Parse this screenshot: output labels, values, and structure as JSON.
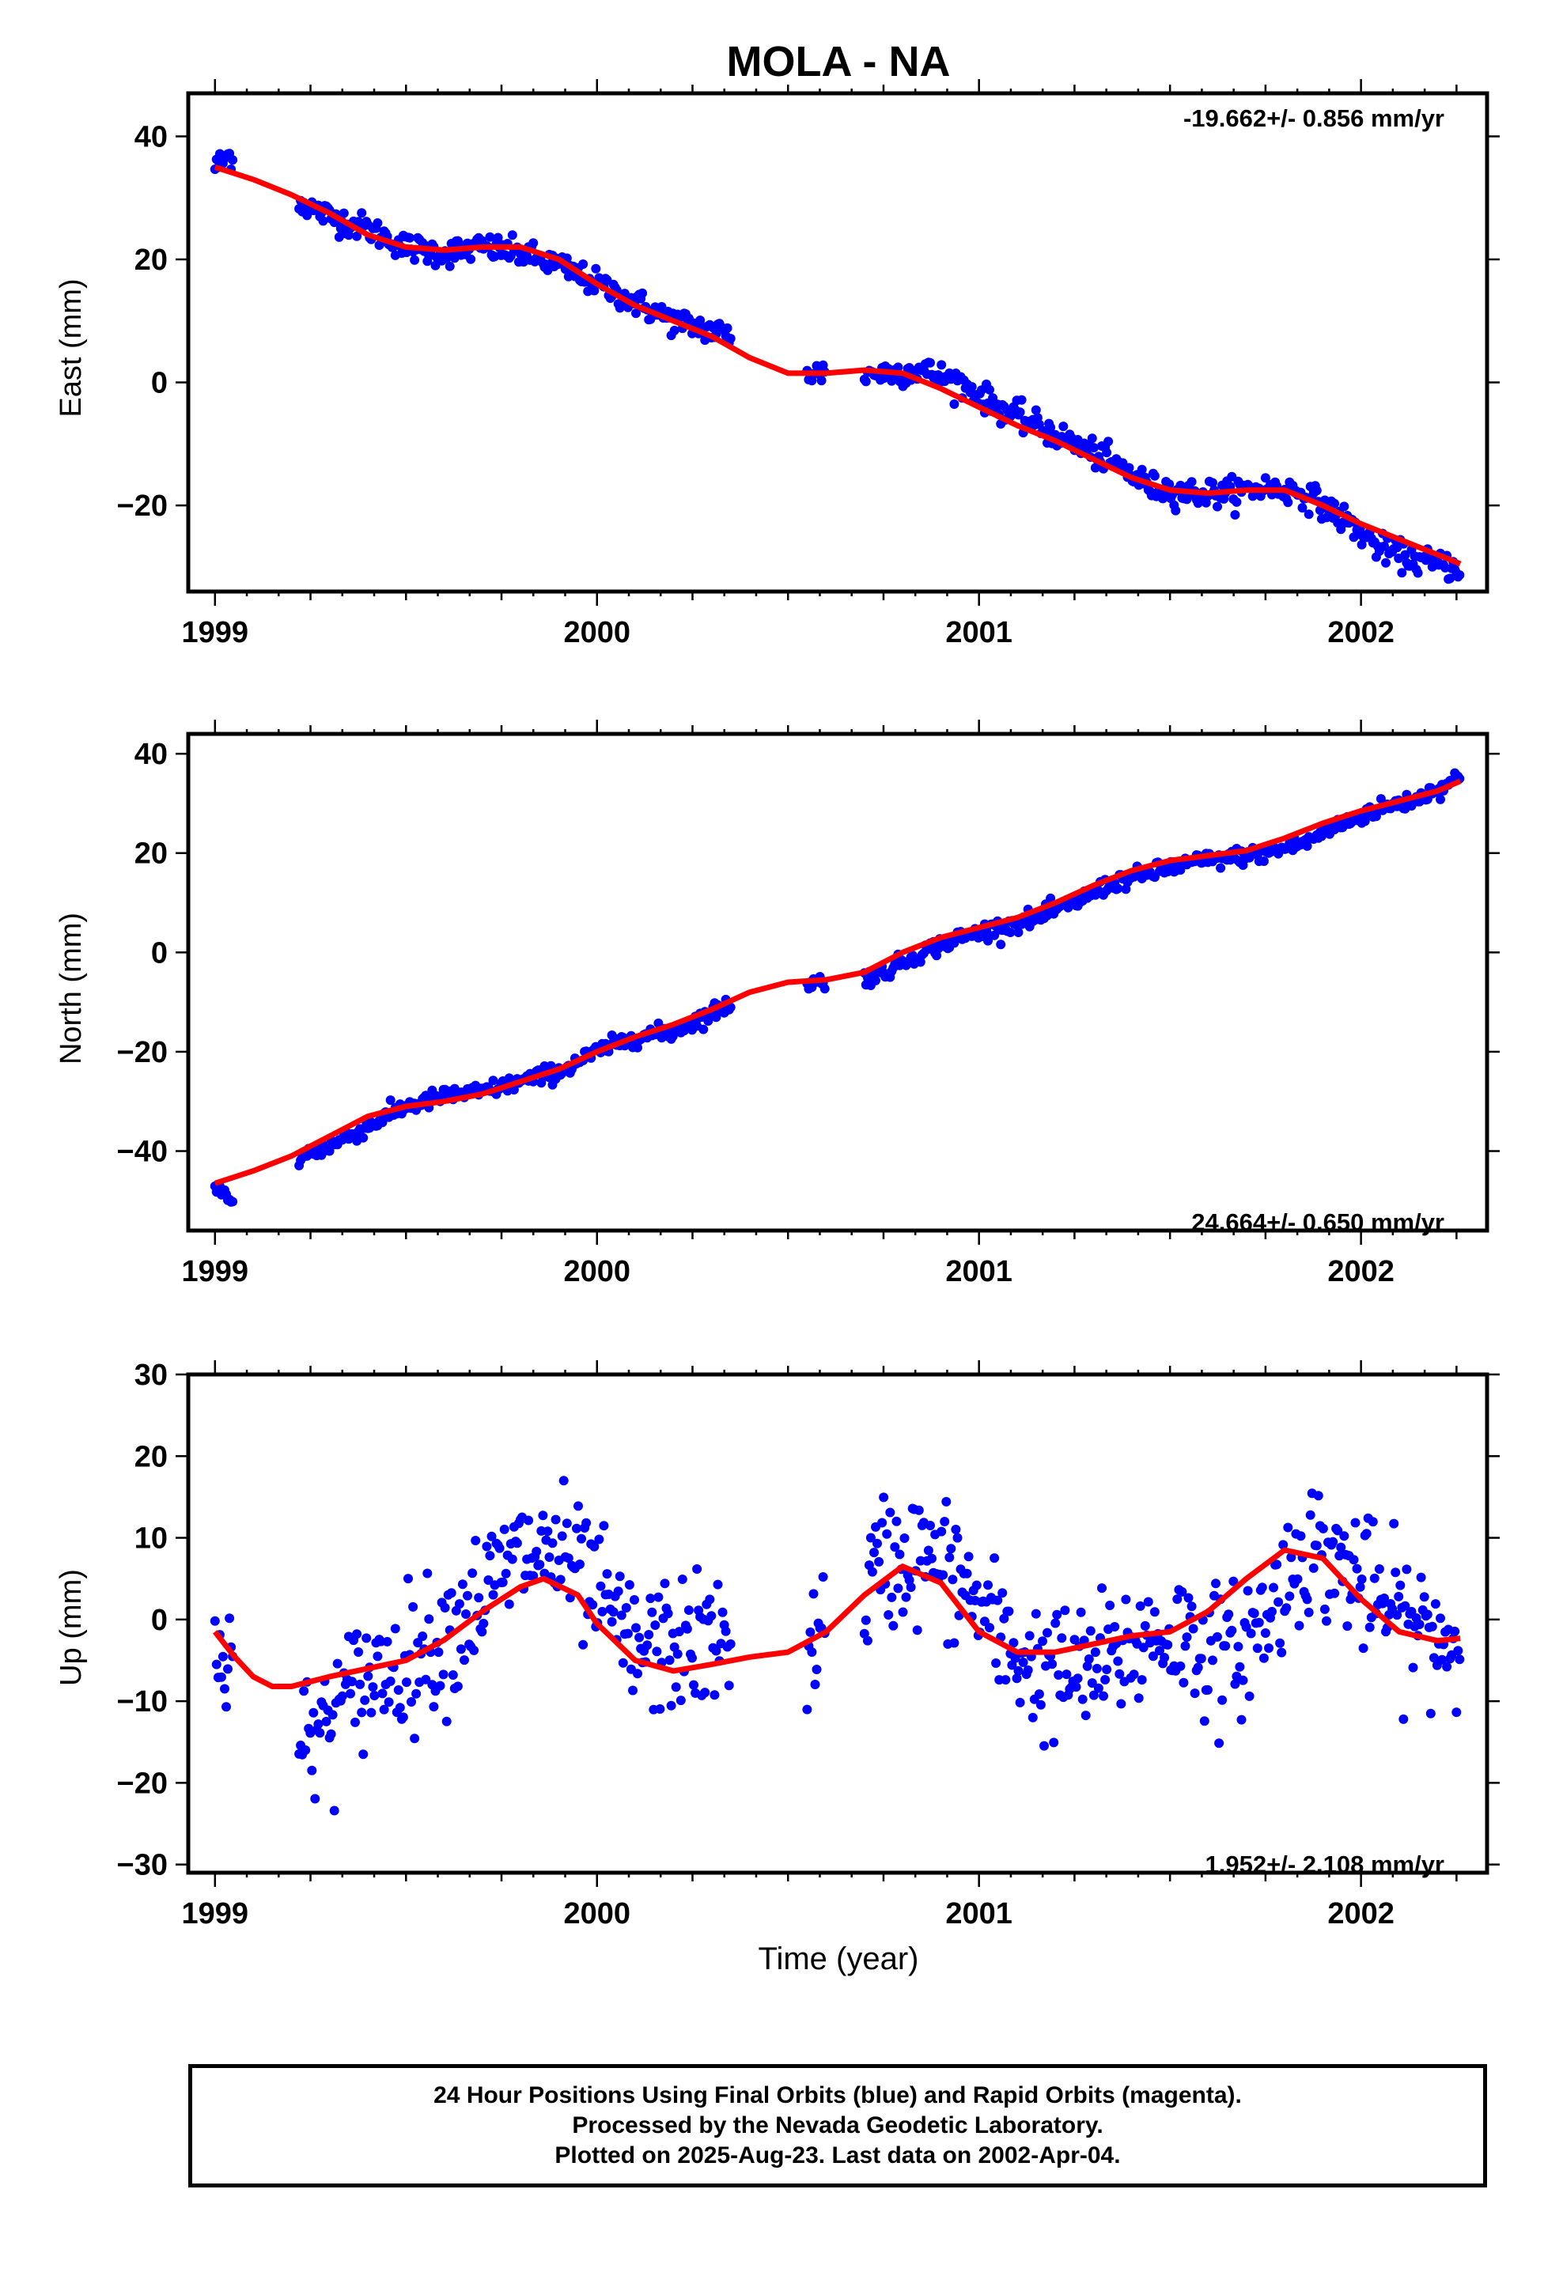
{
  "title": "MOLA - NA",
  "colors": {
    "final_orbits": "#0000ff",
    "rapid_orbits": "#ff00ff",
    "model_fit": "#ff0000"
  },
  "chart_data": [
    {
      "type": "scatter",
      "name": "east",
      "ylabel": "East (mm)",
      "xlabel": "",
      "rate_text": "-19.662+/- 0.856 mm/yr",
      "xlim": [
        1998.93,
        2002.33
      ],
      "ylim": [
        -34,
        47
      ],
      "x_ticks": [
        1999,
        2000,
        2001,
        2002
      ],
      "x_tick_labels": [
        "1999",
        "2000",
        "2001",
        "2002"
      ],
      "y_ticks": [
        40,
        20,
        0,
        -20
      ],
      "y_tick_labels": [
        "40",
        "20",
        "0",
        "−20"
      ],
      "series": [
        {
          "kind": "points",
          "color": "#0000ff",
          "noise": 2.0,
          "x": [
            1999.0,
            1999.02,
            1999.04,
            1999.23,
            1999.3,
            1999.4,
            1999.5,
            1999.6,
            1999.7,
            1999.8,
            1999.9,
            2000.0,
            2000.1,
            2000.2,
            2000.33,
            2000.56,
            2000.65,
            2000.75,
            2000.85,
            2000.95,
            2001.05,
            2001.15,
            2001.25,
            2001.35,
            2001.45,
            2001.55,
            2001.65,
            2001.75,
            2001.85,
            2001.95,
            2002.05,
            2002.15,
            2002.25
          ],
          "y": [
            35,
            36,
            37,
            29,
            27,
            25,
            22,
            21,
            22,
            21,
            19,
            16,
            13,
            10,
            8,
            1.5,
            1.5,
            1.5,
            2,
            0,
            -4,
            -7,
            -10,
            -13,
            -17,
            -18,
            -18,
            -17,
            -18,
            -22,
            -27,
            -29,
            -30
          ]
        },
        {
          "kind": "line",
          "color": "#ff0000",
          "x": [
            1999.0,
            1999.1,
            1999.2,
            1999.3,
            1999.4,
            1999.5,
            1999.6,
            1999.7,
            1999.8,
            1999.9,
            2000.0,
            2000.1,
            2000.2,
            2000.3,
            2000.4,
            2000.5,
            2000.6,
            2000.7,
            2000.8,
            2000.9,
            2001.0,
            2001.1,
            2001.2,
            2001.3,
            2001.4,
            2001.5,
            2001.6,
            2001.7,
            2001.8,
            2001.9,
            2002.0,
            2002.1,
            2002.2,
            2002.26
          ],
          "y": [
            35,
            33,
            30.5,
            27.5,
            24,
            22,
            21.5,
            22,
            22,
            20,
            16,
            12.5,
            10,
            7.5,
            4,
            1.5,
            1.5,
            2,
            1.5,
            -1,
            -4,
            -7,
            -9.5,
            -12.5,
            -15.5,
            -17.5,
            -18,
            -17.5,
            -17.5,
            -20,
            -23,
            -25.5,
            -28,
            -29.5
          ]
        }
      ]
    },
    {
      "type": "scatter",
      "name": "north",
      "ylabel": "North (mm)",
      "xlabel": "",
      "rate_text": "24.664+/- 0.650 mm/yr",
      "xlim": [
        1998.93,
        2002.33
      ],
      "ylim": [
        -56,
        44
      ],
      "x_ticks": [
        1999,
        2000,
        2001,
        2002
      ],
      "x_tick_labels": [
        "1999",
        "2000",
        "2001",
        "2002"
      ],
      "y_ticks": [
        40,
        20,
        0,
        -20,
        -40
      ],
      "y_tick_labels": [
        "40",
        "20",
        "0",
        "−20",
        "−40"
      ],
      "series": [
        {
          "kind": "points",
          "color": "#0000ff",
          "noise": 1.6,
          "x": [
            1999.0,
            1999.02,
            1999.04,
            1999.23,
            1999.3,
            1999.4,
            1999.5,
            1999.6,
            1999.7,
            1999.8,
            1999.9,
            2000.0,
            2000.1,
            2000.2,
            2000.33,
            2000.56,
            2000.65,
            2000.75,
            2000.85,
            2000.95,
            2001.05,
            2001.15,
            2001.25,
            2001.35,
            2001.45,
            2001.55,
            2001.65,
            2001.75,
            2001.85,
            2001.95,
            2002.05,
            2002.15,
            2002.25
          ],
          "y": [
            -48,
            -48,
            -51,
            -41,
            -39,
            -35,
            -31,
            -29,
            -28,
            -26,
            -24,
            -20,
            -17,
            -16,
            -11,
            -6,
            -6,
            -4,
            0,
            3,
            5,
            7,
            10,
            14,
            16,
            18,
            19,
            20,
            22,
            26,
            29,
            31,
            35
          ]
        },
        {
          "kind": "line",
          "color": "#ff0000",
          "x": [
            1999.0,
            1999.1,
            1999.2,
            1999.3,
            1999.4,
            1999.5,
            1999.6,
            1999.7,
            1999.8,
            1999.9,
            2000.0,
            2000.1,
            2000.2,
            2000.3,
            2000.4,
            2000.5,
            2000.6,
            2000.7,
            2000.8,
            2000.9,
            2001.0,
            2001.1,
            2001.2,
            2001.3,
            2001.4,
            2001.5,
            2001.6,
            2001.7,
            2001.8,
            2001.9,
            2002.0,
            2002.1,
            2002.2,
            2002.26
          ],
          "y": [
            -46.5,
            -44,
            -41,
            -37,
            -33,
            -31,
            -30,
            -28.5,
            -26,
            -23.5,
            -20,
            -17,
            -14.5,
            -11.5,
            -8,
            -6,
            -5.5,
            -4,
            0,
            3,
            5,
            7,
            10,
            13.5,
            16.5,
            18.5,
            19.5,
            20.5,
            23,
            26,
            28.5,
            30.5,
            32.5,
            34.5
          ]
        }
      ]
    },
    {
      "type": "scatter",
      "name": "up",
      "ylabel": "Up (mm)",
      "xlabel": "Time (year)",
      "rate_text": "1.952+/- 2.108 mm/yr",
      "xlim": [
        1998.93,
        2002.33
      ],
      "ylim": [
        -31,
        30
      ],
      "x_ticks": [
        1999,
        2000,
        2001,
        2002
      ],
      "x_tick_labels": [
        "1999",
        "2000",
        "2001",
        "2002"
      ],
      "y_ticks": [
        30,
        20,
        10,
        0,
        -10,
        -20,
        -30
      ],
      "y_tick_labels": [
        "30",
        "20",
        "10",
        "0",
        "−10",
        "−20",
        "−30"
      ],
      "series": [
        {
          "kind": "points",
          "color": "#0000ff",
          "noise": 7.5,
          "x": [
            1999.0,
            1999.02,
            1999.04,
            1999.23,
            1999.3,
            1999.4,
            1999.5,
            1999.6,
            1999.7,
            1999.8,
            1999.9,
            2000.0,
            2000.1,
            2000.2,
            2000.33,
            2000.56,
            2000.65,
            2000.75,
            2000.85,
            2000.95,
            2001.05,
            2001.15,
            2001.25,
            2001.35,
            2001.45,
            2001.55,
            2001.65,
            2001.75,
            2001.85,
            2001.95,
            2002.05,
            2002.15,
            2002.25
          ],
          "y": [
            -2,
            -3,
            -5,
            -16,
            -12,
            -7,
            -5,
            -2,
            3,
            8,
            8,
            3,
            -4,
            -3,
            -3,
            -3,
            0,
            7,
            8,
            5,
            -2,
            -6,
            -7,
            -5,
            -2,
            -2,
            -5,
            0,
            9,
            7,
            2,
            -1,
            -3
          ]
        },
        {
          "kind": "line",
          "color": "#ff0000",
          "x": [
            1999.0,
            1999.05,
            1999.1,
            1999.15,
            1999.2,
            1999.25,
            1999.3,
            1999.4,
            1999.5,
            1999.6,
            1999.7,
            1999.8,
            1999.86,
            1999.95,
            2000.0,
            2000.1,
            2000.2,
            2000.3,
            2000.4,
            2000.5,
            2000.6,
            2000.7,
            2000.8,
            2000.9,
            2001.0,
            2001.1,
            2001.2,
            2001.3,
            2001.4,
            2001.5,
            2001.6,
            2001.7,
            2001.8,
            2001.9,
            2002.0,
            2002.1,
            2002.2,
            2002.26
          ],
          "y": [
            -1.5,
            -4.5,
            -7,
            -8.2,
            -8.2,
            -7.6,
            -7,
            -6,
            -5,
            -2.5,
            1,
            4,
            5,
            3,
            -0.5,
            -5,
            -6.3,
            -5.5,
            -4.6,
            -4,
            -1.5,
            3,
            6.5,
            4.5,
            -1.5,
            -4,
            -4,
            -3,
            -2,
            -1.5,
            1,
            5,
            8.5,
            7.5,
            2.5,
            -1.5,
            -2.6,
            -2.3
          ]
        }
      ]
    }
  ],
  "footer": {
    "line1": "24 Hour Positions Using Final Orbits (blue) and Rapid Orbits (magenta).",
    "line2": "Processed by the Nevada Geodetic Laboratory.",
    "line3": "Plotted on 2025-Aug-23. Last data on 2002-Apr-04."
  }
}
